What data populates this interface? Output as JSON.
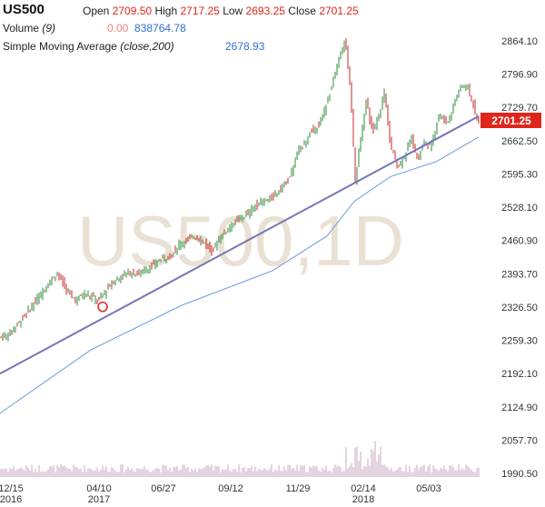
{
  "header": {
    "symbol": "US500",
    "open_label": "Open",
    "open": "2709.50",
    "high_label": "High",
    "high": "2717.25",
    "low_label": "Low",
    "low": "2693.25",
    "close_label": "Close",
    "close": "2701.25",
    "volume_label": "Volume",
    "volume_param": "(9)",
    "volume_ma": "0.00",
    "volume_value": "838764.78",
    "sma_label": "Simple Moving Average",
    "sma_param": "(close,200)",
    "sma_value": "2678.93"
  },
  "watermark": "US500,1D",
  "price_badge": "2701.25",
  "colors": {
    "up": "#2e8b3a",
    "down": "#c62828",
    "sma": "#6e9bdc",
    "trendline": "#7676b8",
    "badge": "#e0251b",
    "volume": "#c9a9c0"
  },
  "chart_data": {
    "type": "candlestick",
    "y_ticks": [
      "2864.10",
      "2796.90",
      "2729.70",
      "2662.50",
      "2595.30",
      "2528.10",
      "2460.90",
      "2393.70",
      "2326.50",
      "2259.30",
      "2192.10",
      "2124.90",
      "2057.70",
      "1990.50"
    ],
    "ylim": [
      1970,
      2880
    ],
    "x_ticks": [
      {
        "label": "12/15",
        "year": "2016"
      },
      {
        "label": "04/10",
        "year": "2017"
      },
      {
        "label": "06/27",
        "year": ""
      },
      {
        "label": "09/12",
        "year": ""
      },
      {
        "label": "11/29",
        "year": ""
      },
      {
        "label": "02/14",
        "year": "2018"
      },
      {
        "label": "05/03",
        "year": ""
      }
    ],
    "price_path": [
      [
        0,
        2265
      ],
      [
        10,
        2270
      ],
      [
        25,
        2300
      ],
      [
        40,
        2335
      ],
      [
        55,
        2375
      ],
      [
        65,
        2395
      ],
      [
        75,
        2360
      ],
      [
        85,
        2340
      ],
      [
        95,
        2355
      ],
      [
        110,
        2340
      ],
      [
        125,
        2375
      ],
      [
        140,
        2395
      ],
      [
        155,
        2395
      ],
      [
        170,
        2410
      ],
      [
        180,
        2425
      ],
      [
        190,
        2430
      ],
      [
        200,
        2455
      ],
      [
        215,
        2470
      ],
      [
        225,
        2460
      ],
      [
        235,
        2440
      ],
      [
        245,
        2470
      ],
      [
        255,
        2490
      ],
      [
        265,
        2505
      ],
      [
        275,
        2515
      ],
      [
        285,
        2535
      ],
      [
        300,
        2545
      ],
      [
        310,
        2565
      ],
      [
        320,
        2585
      ],
      [
        330,
        2640
      ],
      [
        345,
        2680
      ],
      [
        355,
        2700
      ],
      [
        365,
        2760
      ],
      [
        375,
        2830
      ],
      [
        382,
        2865
      ],
      [
        388,
        2760
      ],
      [
        393,
        2580
      ],
      [
        398,
        2650
      ],
      [
        405,
        2740
      ],
      [
        412,
        2680
      ],
      [
        420,
        2720
      ],
      [
        425,
        2760
      ],
      [
        432,
        2650
      ],
      [
        440,
        2610
      ],
      [
        448,
        2635
      ],
      [
        455,
        2670
      ],
      [
        462,
        2620
      ],
      [
        468,
        2660
      ],
      [
        476,
        2650
      ],
      [
        485,
        2715
      ],
      [
        495,
        2700
      ],
      [
        503,
        2745
      ],
      [
        510,
        2775
      ],
      [
        517,
        2770
      ],
      [
        522,
        2740
      ],
      [
        527,
        2702
      ]
    ],
    "sma_path": [
      [
        0,
        2112
      ],
      [
        100,
        2240
      ],
      [
        200,
        2330
      ],
      [
        300,
        2400
      ],
      [
        360,
        2470
      ],
      [
        390,
        2540
      ],
      [
        430,
        2590
      ],
      [
        480,
        2620
      ],
      [
        527,
        2670
      ]
    ],
    "trendline": [
      [
        0,
        2192
      ],
      [
        527,
        2712
      ]
    ],
    "marker": {
      "x": 113,
      "y": 2327
    },
    "volume_bars": 180
  }
}
